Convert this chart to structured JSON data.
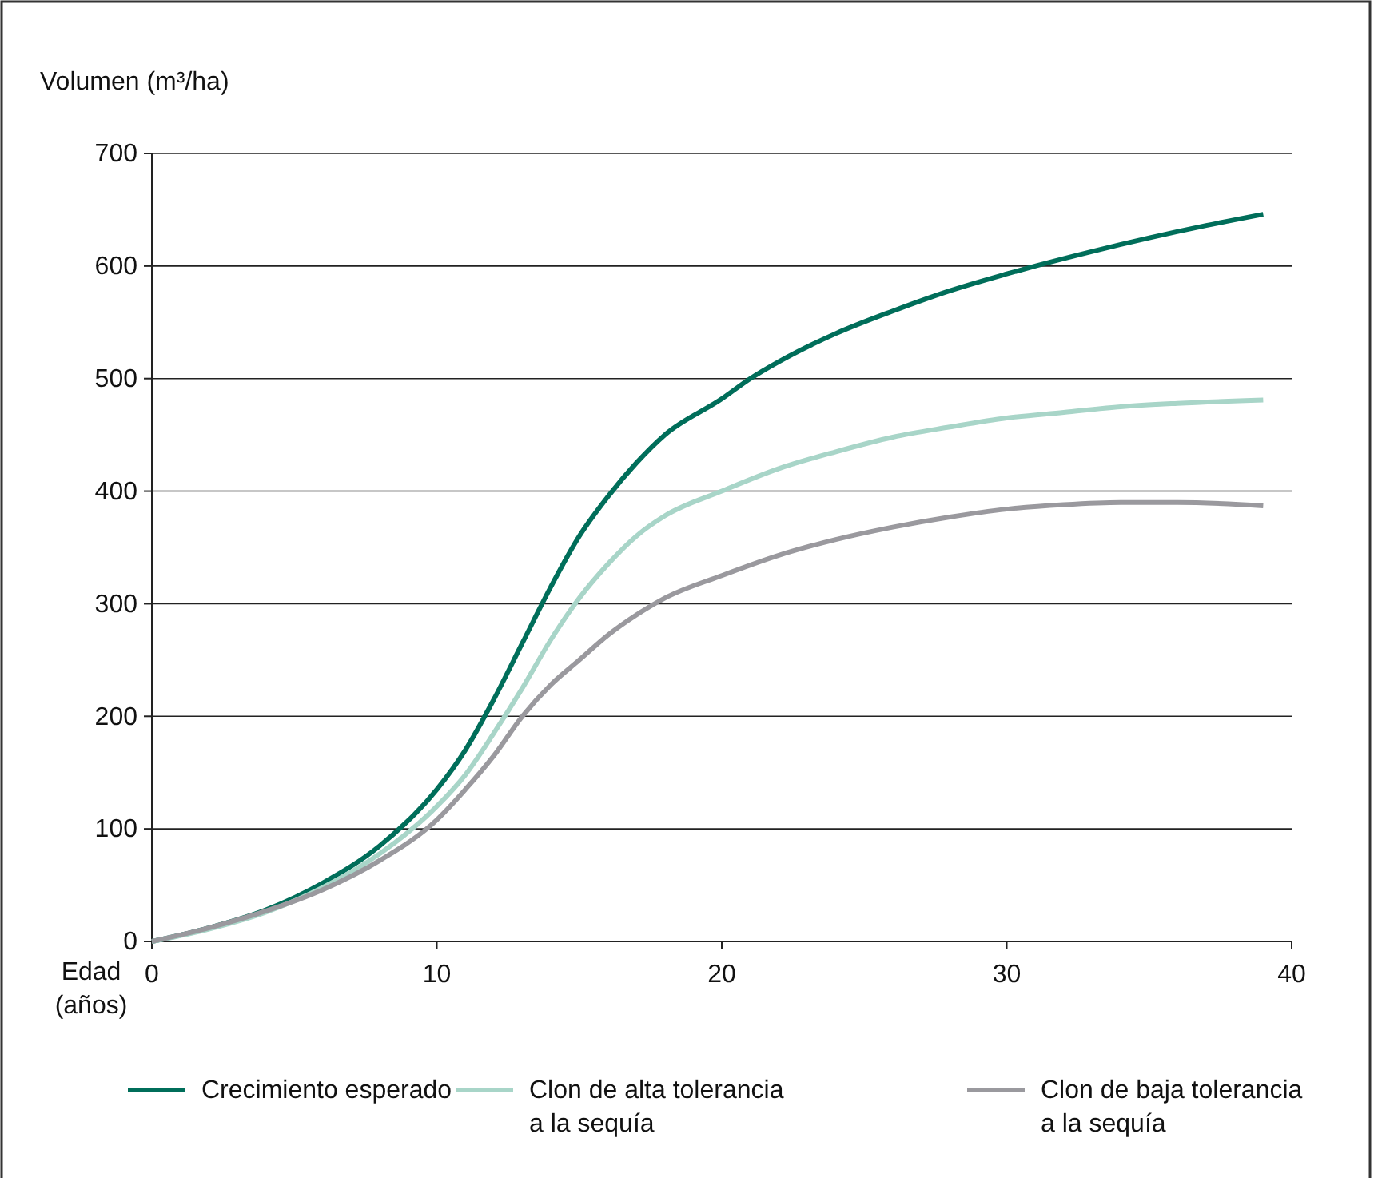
{
  "chart_data": {
    "type": "line",
    "ylabel": "Volumen (m³/ha)",
    "xlabel": "Edad\n(años)",
    "xlim": [
      0,
      40
    ],
    "xticks": [
      0,
      10,
      20,
      30,
      40
    ],
    "ylim": [
      0,
      700
    ],
    "yticks": [
      0,
      100,
      200,
      300,
      400,
      500,
      600,
      700
    ],
    "grid": "y",
    "legend": "bottom",
    "line_style": "solid",
    "marker": "none",
    "series": [
      {
        "name": "Crecimiento esperado",
        "color": "#006e5a",
        "x": [
          0,
          2,
          4,
          6,
          8,
          10,
          11,
          12,
          13,
          14,
          15,
          16,
          17,
          18,
          20,
          21,
          22,
          24,
          26,
          28,
          30,
          31,
          33,
          35,
          37,
          39
        ],
        "values": [
          0,
          12,
          28,
          52,
          85,
          135,
          170,
          215,
          265,
          315,
          360,
          395,
          425,
          450,
          482,
          500,
          515,
          540,
          560,
          578,
          593,
          600,
          613,
          625,
          636,
          646
        ]
      },
      {
        "name": "Clon de alta tolerancia a la sequía",
        "color": "#a8d5c8",
        "x": [
          0,
          2,
          4,
          6,
          8,
          10,
          11,
          12,
          13,
          14,
          15,
          16,
          17,
          18,
          20,
          22,
          24,
          26,
          28,
          30,
          32,
          34,
          36,
          39
        ],
        "values": [
          0,
          11,
          26,
          48,
          78,
          120,
          148,
          185,
          225,
          268,
          305,
          335,
          360,
          378,
          400,
          420,
          435,
          448,
          457,
          465,
          470,
          475,
          478,
          481
        ]
      },
      {
        "name": "Clon de baja tolerancia a la sequía",
        "color": "#9a999e",
        "x": [
          0,
          2,
          4,
          6,
          8,
          10,
          11,
          12,
          13,
          14,
          15,
          16,
          17,
          18,
          20,
          22,
          24,
          26,
          28,
          30,
          32,
          34,
          36,
          39
        ],
        "values": [
          0,
          12,
          27,
          46,
          72,
          108,
          135,
          165,
          200,
          228,
          250,
          272,
          290,
          305,
          325,
          343,
          357,
          368,
          377,
          384,
          388,
          390,
          390,
          387
        ]
      }
    ]
  }
}
